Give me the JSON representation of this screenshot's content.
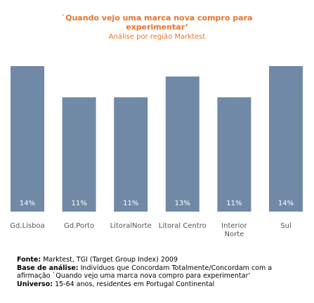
{
  "chart_data": {
    "type": "bar",
    "title_line1": "`Quando vejo uma marca nova compro para",
    "title_line2": "experimentar’",
    "subtitle": "Análise por região Marktest",
    "categories": [
      "Gd.Lisboa",
      "Gd.Porto",
      "LitoralNorte",
      "Litoral Centro",
      "Interior Norte",
      "Sul"
    ],
    "category_lines": [
      [
        "Gd.Lisboa"
      ],
      [
        "Gd.Porto"
      ],
      [
        "LitoralNorte"
      ],
      [
        "Litoral Centro"
      ],
      [
        "Interior",
        "Norte"
      ],
      [
        "Sul"
      ]
    ],
    "values": [
      14,
      11,
      11,
      13,
      11,
      14
    ],
    "data_labels": [
      "14%",
      "11%",
      "11%",
      "13%",
      "11%",
      "14%"
    ],
    "ylim": [
      0,
      14
    ],
    "bar_color": "#7089a6",
    "label_color": "#ffffff",
    "grid": false,
    "legend": "none"
  },
  "footer": {
    "fonte_label": "Fonte:",
    "fonte_text": " Marktest, TGI (Target Group Index) 2009",
    "base_label": "Base de análise:",
    "base_text": "  Indivíduos que Concordam Totalmente/Concordam com a",
    "base_text2": "afirmação `Quando vejo uma marca nova compro para experimentar’",
    "universo_label": "Universo:",
    "universo_text": " 15-64 anos, residentes em Portugal Continental"
  }
}
